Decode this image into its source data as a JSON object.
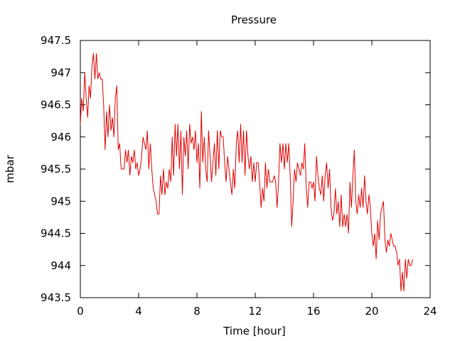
{
  "chart_data": {
    "type": "line",
    "title": "Pressure",
    "xlabel": "Time [hour]",
    "ylabel": "mbar",
    "xlim": [
      0,
      24
    ],
    "ylim": [
      943.5,
      947.5
    ],
    "x_ticks": [
      0,
      4,
      8,
      12,
      16,
      20,
      24
    ],
    "x_tick_labels": [
      "0",
      "4",
      "8",
      "12",
      "16",
      "20",
      "24"
    ],
    "y_ticks": [
      943.5,
      944,
      944.5,
      945,
      945.5,
      946,
      946.5,
      947,
      947.5
    ],
    "y_tick_labels": [
      "943.5",
      "944",
      "944.5",
      "945",
      "945.5",
      "946",
      "946.5",
      "947",
      "947.5"
    ],
    "grid": false,
    "line_color": "#e00000",
    "series": [
      {
        "points": [
          [
            0.0,
            946.2
          ],
          [
            0.1,
            946.6
          ],
          [
            0.2,
            946.4
          ],
          [
            0.3,
            947.0
          ],
          [
            0.4,
            946.6
          ],
          [
            0.5,
            946.3
          ],
          [
            0.6,
            946.8
          ],
          [
            0.7,
            946.6
          ],
          [
            0.8,
            947.1
          ],
          [
            0.9,
            947.3
          ],
          [
            1.0,
            946.9
          ],
          [
            1.1,
            947.3
          ],
          [
            1.2,
            946.9
          ],
          [
            1.3,
            947.0
          ],
          [
            1.4,
            946.9
          ],
          [
            1.5,
            946.9
          ],
          [
            1.6,
            946.5
          ],
          [
            1.7,
            945.8
          ],
          [
            1.8,
            946.4
          ],
          [
            1.9,
            946.0
          ],
          [
            2.0,
            946.5
          ],
          [
            2.1,
            946.1
          ],
          [
            2.2,
            946.3
          ],
          [
            2.3,
            946.0
          ],
          [
            2.4,
            946.6
          ],
          [
            2.5,
            946.8
          ],
          [
            2.6,
            945.8
          ],
          [
            2.7,
            945.9
          ],
          [
            2.8,
            945.5
          ],
          [
            3.0,
            945.5
          ],
          [
            3.1,
            945.8
          ],
          [
            3.2,
            945.6
          ],
          [
            3.3,
            945.8
          ],
          [
            3.4,
            945.4
          ],
          [
            3.5,
            945.7
          ],
          [
            3.6,
            945.6
          ],
          [
            3.7,
            945.8
          ],
          [
            3.8,
            945.5
          ],
          [
            3.9,
            945.6
          ],
          [
            4.0,
            945.4
          ],
          [
            4.1,
            945.5
          ],
          [
            4.2,
            945.7
          ],
          [
            4.3,
            946.0
          ],
          [
            4.4,
            945.9
          ],
          [
            4.5,
            945.8
          ],
          [
            4.6,
            946.1
          ],
          [
            4.7,
            945.5
          ],
          [
            4.8,
            945.9
          ],
          [
            4.9,
            945.5
          ],
          [
            5.0,
            945.2
          ],
          [
            5.1,
            945.1
          ],
          [
            5.2,
            945.0
          ],
          [
            5.3,
            944.8
          ],
          [
            5.4,
            944.8
          ],
          [
            5.5,
            945.4
          ],
          [
            5.6,
            945.1
          ],
          [
            5.7,
            945.5
          ],
          [
            5.8,
            945.1
          ],
          [
            5.9,
            945.3
          ],
          [
            6.0,
            945.2
          ],
          [
            6.1,
            945.5
          ],
          [
            6.2,
            945.3
          ],
          [
            6.3,
            946.0
          ],
          [
            6.4,
            945.4
          ],
          [
            6.5,
            946.2
          ],
          [
            6.6,
            945.7
          ],
          [
            6.7,
            946.2
          ],
          [
            6.8,
            945.5
          ],
          [
            6.9,
            946.1
          ],
          [
            7.0,
            945.1
          ],
          [
            7.1,
            946.0
          ],
          [
            7.2,
            945.7
          ],
          [
            7.3,
            946.1
          ],
          [
            7.4,
            945.5
          ],
          [
            7.5,
            946.2
          ],
          [
            7.6,
            945.9
          ],
          [
            7.7,
            946.0
          ],
          [
            7.8,
            945.8
          ],
          [
            7.9,
            946.1
          ],
          [
            8.0,
            945.6
          ],
          [
            8.1,
            945.9
          ],
          [
            8.2,
            945.2
          ],
          [
            8.3,
            946.4
          ],
          [
            8.4,
            945.6
          ],
          [
            8.5,
            946.0
          ],
          [
            8.6,
            945.5
          ],
          [
            8.7,
            945.3
          ],
          [
            8.8,
            946.1
          ],
          [
            8.9,
            945.7
          ],
          [
            9.0,
            945.3
          ],
          [
            9.1,
            945.6
          ],
          [
            9.2,
            945.9
          ],
          [
            9.3,
            945.4
          ],
          [
            9.4,
            946.1
          ],
          [
            9.5,
            945.5
          ],
          [
            9.6,
            946.1
          ],
          [
            9.7,
            946.0
          ],
          [
            9.8,
            946.0
          ],
          [
            9.9,
            945.6
          ],
          [
            10.0,
            945.3
          ],
          [
            10.1,
            945.7
          ],
          [
            10.2,
            945.5
          ],
          [
            10.3,
            945.3
          ],
          [
            10.4,
            945.1
          ],
          [
            10.5,
            945.5
          ],
          [
            10.6,
            945.2
          ],
          [
            10.7,
            945.9
          ],
          [
            10.8,
            946.1
          ],
          [
            10.9,
            945.6
          ],
          [
            11.0,
            946.2
          ],
          [
            11.1,
            945.6
          ],
          [
            11.2,
            946.1
          ],
          [
            11.3,
            945.4
          ],
          [
            11.4,
            946.1
          ],
          [
            11.5,
            945.7
          ],
          [
            11.6,
            945.5
          ],
          [
            11.7,
            945.7
          ],
          [
            11.8,
            945.3
          ],
          [
            11.9,
            945.6
          ],
          [
            12.0,
            945.3
          ],
          [
            12.1,
            945.6
          ],
          [
            12.2,
            945.6
          ],
          [
            12.3,
            945.3
          ],
          [
            12.4,
            944.9
          ],
          [
            12.5,
            945.2
          ],
          [
            12.6,
            945.0
          ],
          [
            12.7,
            945.6
          ],
          [
            12.8,
            945.2
          ],
          [
            12.9,
            945.5
          ],
          [
            13.0,
            945.3
          ],
          [
            13.2,
            945.3
          ],
          [
            13.3,
            945.4
          ],
          [
            13.4,
            945.3
          ],
          [
            13.5,
            944.9
          ],
          [
            13.6,
            945.3
          ],
          [
            13.7,
            945.9
          ],
          [
            13.8,
            945.6
          ],
          [
            13.9,
            945.9
          ],
          [
            14.0,
            945.5
          ],
          [
            14.1,
            945.9
          ],
          [
            14.2,
            945.6
          ],
          [
            14.3,
            945.9
          ],
          [
            14.4,
            945.4
          ],
          [
            14.5,
            944.6
          ],
          [
            14.6,
            945.0
          ],
          [
            14.7,
            945.5
          ],
          [
            14.8,
            945.3
          ],
          [
            14.9,
            945.6
          ],
          [
            15.0,
            945.5
          ],
          [
            15.1,
            945.4
          ],
          [
            15.2,
            945.6
          ],
          [
            15.3,
            945.5
          ],
          [
            15.4,
            945.9
          ],
          [
            15.5,
            945.2
          ],
          [
            15.6,
            944.9
          ],
          [
            15.7,
            945.3
          ],
          [
            15.8,
            945.3
          ],
          [
            15.9,
            945.2
          ],
          [
            16.0,
            945.3
          ],
          [
            16.1,
            945.0
          ],
          [
            16.2,
            945.7
          ],
          [
            16.3,
            945.4
          ],
          [
            16.4,
            945.2
          ],
          [
            16.5,
            945.1
          ],
          [
            16.6,
            945.4
          ],
          [
            16.7,
            945.0
          ],
          [
            16.8,
            945.4
          ],
          [
            16.9,
            945.6
          ],
          [
            17.0,
            945.2
          ],
          [
            17.1,
            945.5
          ],
          [
            17.2,
            944.9
          ],
          [
            17.3,
            944.7
          ],
          [
            17.4,
            944.8
          ],
          [
            17.5,
            945.2
          ],
          [
            17.6,
            944.8
          ],
          [
            17.7,
            945.0
          ],
          [
            17.8,
            944.6
          ],
          [
            17.9,
            945.1
          ],
          [
            18.0,
            944.6
          ],
          [
            18.1,
            944.8
          ],
          [
            18.2,
            944.6
          ],
          [
            18.3,
            944.8
          ],
          [
            18.4,
            944.5
          ],
          [
            18.5,
            945.3
          ],
          [
            18.6,
            944.9
          ],
          [
            18.7,
            945.4
          ],
          [
            18.8,
            945.8
          ],
          [
            18.9,
            945.0
          ],
          [
            19.0,
            944.8
          ],
          [
            19.1,
            945.1
          ],
          [
            19.2,
            944.9
          ],
          [
            19.3,
            945.2
          ],
          [
            19.4,
            944.9
          ],
          [
            19.5,
            945.4
          ],
          [
            19.6,
            945.0
          ],
          [
            19.7,
            944.8
          ],
          [
            19.8,
            945.1
          ],
          [
            19.9,
            944.9
          ],
          [
            20.0,
            944.5
          ],
          [
            20.1,
            944.3
          ],
          [
            20.2,
            944.5
          ],
          [
            20.3,
            944.1
          ],
          [
            20.4,
            944.7
          ],
          [
            20.5,
            944.4
          ],
          [
            20.6,
            944.8
          ],
          [
            20.7,
            944.9
          ],
          [
            20.8,
            945.0
          ],
          [
            20.9,
            944.4
          ],
          [
            21.0,
            944.2
          ],
          [
            21.1,
            944.4
          ],
          [
            21.2,
            944.3
          ],
          [
            21.3,
            944.5
          ],
          [
            21.4,
            944.4
          ],
          [
            21.5,
            944.3
          ],
          [
            21.6,
            944.3
          ],
          [
            21.7,
            944.2
          ],
          [
            21.8,
            944.0
          ],
          [
            21.9,
            944.1
          ],
          [
            22.0,
            943.6
          ],
          [
            22.1,
            943.9
          ],
          [
            22.2,
            943.6
          ],
          [
            22.3,
            944.1
          ],
          [
            22.4,
            943.8
          ],
          [
            22.5,
            944.1
          ],
          [
            22.6,
            944.0
          ],
          [
            22.7,
            944.0
          ],
          [
            22.8,
            944.1
          ]
        ]
      }
    ]
  }
}
